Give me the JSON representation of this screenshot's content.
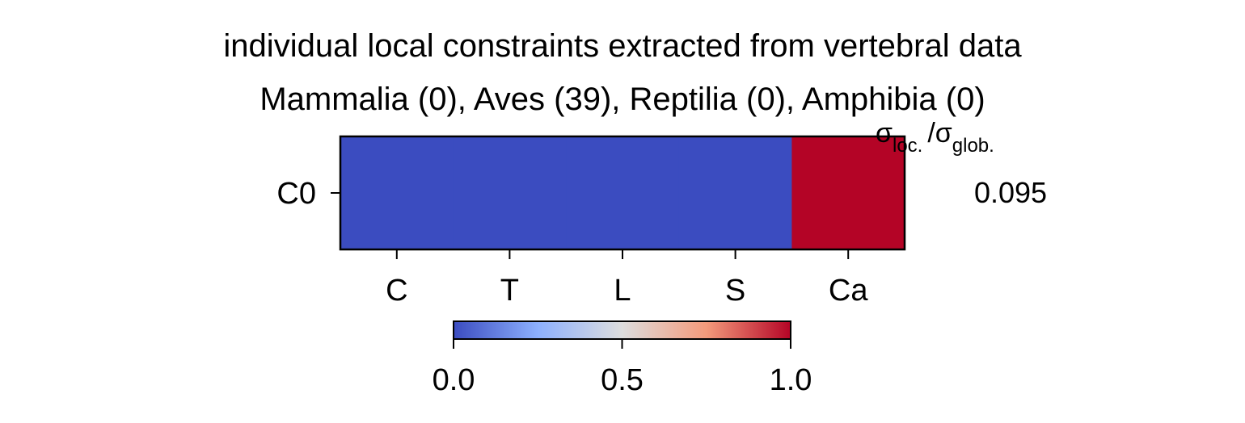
{
  "chart_data": {
    "type": "heatmap",
    "title_line1": "individual local constraints extracted from vertebral data",
    "title_line2": "Mammalia (0), Aves (39), Reptilia (0), Amphibia (0)",
    "x_categories": [
      "C",
      "T",
      "L",
      "S",
      "Ca"
    ],
    "y_categories": [
      "C0"
    ],
    "values": [
      [
        0,
        0,
        0,
        0,
        1
      ]
    ],
    "colormap": "coolwarm",
    "colorbar": {
      "ticks": [
        "0.0",
        "0.5",
        "1.0"
      ],
      "range": [
        0,
        1
      ],
      "colors": [
        "#3b4cc0",
        "#8db0fe",
        "#dddddd",
        "#f49a7b",
        "#b40426"
      ],
      "placement": "bottom"
    },
    "side_annotation": {
      "header_symbol": "σ",
      "header_sub_loc": "loc.",
      "header_sep": "/",
      "header_sub_glob": "glob.",
      "values": [
        "0.095"
      ]
    },
    "grid": false
  }
}
